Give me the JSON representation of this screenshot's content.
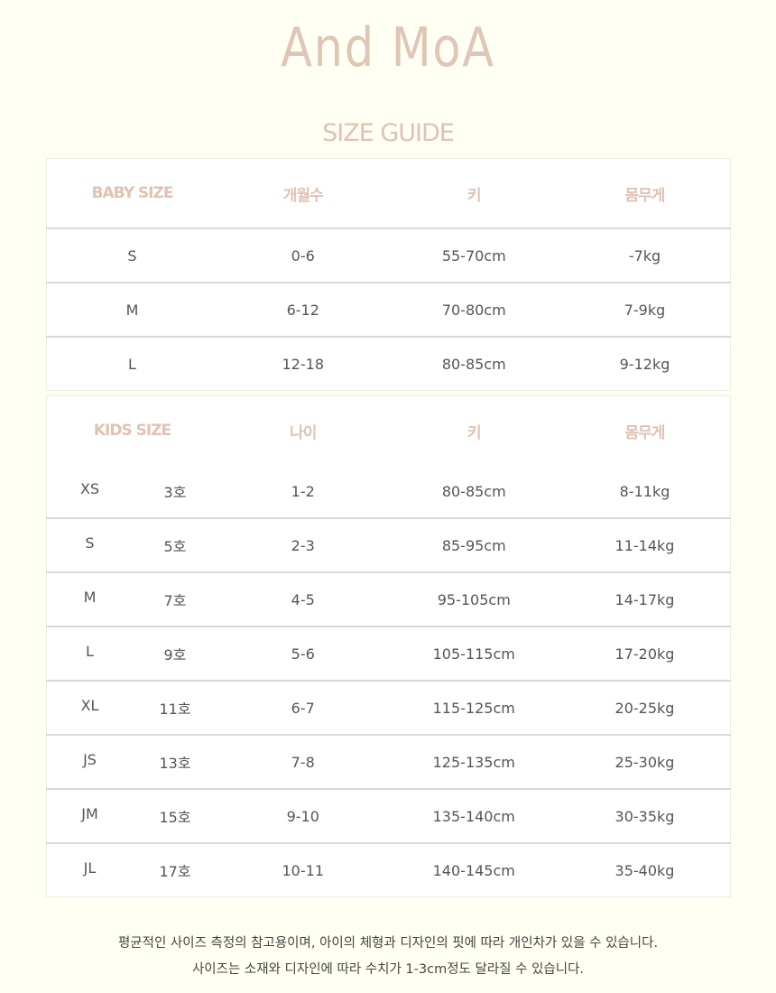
{
  "brand": {
    "logo": "And MoA",
    "accent": "#dfc6b6"
  },
  "title": "SIZE GUIDE",
  "baby": {
    "headers": [
      "BABY SIZE",
      "개월수",
      "키",
      "몸무게"
    ],
    "rows": [
      [
        "S",
        "0-6",
        "55-70cm",
        "-7kg"
      ],
      [
        "M",
        "6-12",
        "70-80cm",
        "7-9kg"
      ],
      [
        "L",
        "12-18",
        "80-85cm",
        "9-12kg"
      ]
    ]
  },
  "kids": {
    "headers": [
      "KIDS SIZE",
      "나이",
      "키",
      "몸무게"
    ],
    "rows": [
      [
        "XS",
        "3호",
        "1-2",
        "80-85cm",
        "8-11kg"
      ],
      [
        "S",
        "5호",
        "2-3",
        "85-95cm",
        "11-14kg"
      ],
      [
        "M",
        "7호",
        "4-5",
        "95-105cm",
        "14-17kg"
      ],
      [
        "L",
        "9호",
        "5-6",
        "105-115cm",
        "17-20kg"
      ],
      [
        "XL",
        "11호",
        "6-7",
        "115-125cm",
        "20-25kg"
      ],
      [
        "JS",
        "13호",
        "7-8",
        "125-135cm",
        "25-30kg"
      ],
      [
        "JM",
        "15호",
        "9-10",
        "135-140cm",
        "30-35kg"
      ],
      [
        "JL",
        "17호",
        "10-11",
        "140-145cm",
        "35-40kg"
      ]
    ]
  },
  "notes": [
    "평균적인 사이즈 측정의 참고용이며, 아이의 체형과 디자인의 핏에 따라 개인차가 있을 수 있습니다.",
    "사이즈는 소재와 디자인에 따라 수치가 1-3cm정도 달라질 수 있습니다."
  ]
}
